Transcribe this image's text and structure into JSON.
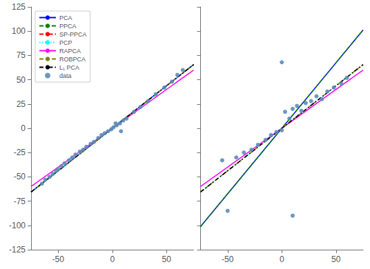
{
  "chart_data": [
    {
      "type": "line",
      "xlim": [
        -75,
        75
      ],
      "xticks": [
        -50,
        0,
        50
      ],
      "ylim": [
        -125,
        125
      ],
      "yticks": [
        -125,
        -100,
        -75,
        -50,
        -25,
        0,
        25,
        50,
        75,
        100,
        125
      ],
      "grid": false,
      "legend": "upper left",
      "series": [
        {
          "name": "PCA",
          "type": "line",
          "color": "blue",
          "line_style": "solid",
          "x": [
            -75,
            75
          ],
          "values": [
            -65.625,
            65.625
          ]
        },
        {
          "name": "PPCA",
          "type": "line",
          "color": "green",
          "line_style": "dashed",
          "x": [
            -75,
            75
          ],
          "values": [
            -65.625,
            65.625
          ]
        },
        {
          "name": "SP-PPCA",
          "type": "line",
          "color": "red",
          "line_style": "dashdot",
          "x": [
            -75,
            75
          ],
          "values": [
            -65.625,
            65.625
          ]
        },
        {
          "name": "PCP",
          "type": "line",
          "color": "cyan",
          "line_style": "dotted",
          "x": [
            -75,
            75
          ],
          "values": [
            -65.625,
            65.625
          ]
        },
        {
          "name": "RAPCA",
          "type": "line",
          "color": "magenta",
          "line_style": "solid",
          "x": [
            -75,
            75
          ],
          "values": [
            -60,
            60
          ]
        },
        {
          "name": "ROBPCA",
          "type": "line",
          "color": "#808000",
          "line_style": "dashed",
          "x": [
            -75,
            75
          ],
          "values": [
            -65.625,
            65.625
          ]
        },
        {
          "name": "L₁ PCA",
          "type": "line",
          "color": "black",
          "line_style": "dashdot",
          "x": [
            -75,
            75
          ],
          "values": [
            -65.625,
            65.625
          ]
        },
        {
          "name": "data",
          "type": "scatter",
          "color": "#5b8db8",
          "marker": "circle",
          "x": [
            -65,
            -62,
            -58,
            -55,
            -52,
            -50,
            -47,
            -44,
            -40,
            -37,
            -34,
            -30,
            -27,
            -24,
            -20,
            -17,
            -13,
            -10,
            -7,
            -4,
            -1,
            1,
            4,
            7,
            10,
            13,
            3,
            8,
            20,
            26,
            33,
            40,
            48,
            55,
            60,
            65
          ],
          "values": [
            -57,
            -53,
            -50,
            -47,
            -44,
            -42,
            -39,
            -36,
            -33,
            -30,
            -27,
            -24,
            -22,
            -19,
            -16,
            -14,
            -10,
            -7,
            -5,
            -3,
            -1,
            1,
            3,
            5,
            8,
            10,
            5,
            -3,
            17,
            22,
            28,
            35,
            42,
            48,
            55,
            60
          ]
        }
      ]
    },
    {
      "type": "line",
      "xlim": [
        -75,
        75
      ],
      "xticks": [
        -50,
        0,
        50
      ],
      "ylim": [
        -125,
        125
      ],
      "yticks": [
        -125,
        -100,
        -75,
        -50,
        -25,
        0,
        25,
        50,
        75,
        100,
        125
      ],
      "grid": false,
      "tick_labels": "x",
      "series": [
        {
          "name": "PCA",
          "type": "line",
          "color": "blue",
          "line_style": "solid",
          "x": [
            -75,
            75
          ],
          "values": [
            -101.25,
            101.25
          ]
        },
        {
          "name": "PPCA",
          "type": "line",
          "color": "green",
          "line_style": "dashed",
          "x": [
            -75,
            75
          ],
          "values": [
            -101.25,
            101.25
          ]
        },
        {
          "name": "SP-PPCA",
          "type": "line",
          "color": "red",
          "line_style": "dashdot",
          "x": [
            -75,
            75
          ],
          "values": [
            -65.625,
            65.625
          ]
        },
        {
          "name": "PCP",
          "type": "line",
          "color": "cyan",
          "line_style": "dotted",
          "x": [
            -75,
            75
          ],
          "values": [
            -65.625,
            65.625
          ]
        },
        {
          "name": "RAPCA",
          "type": "line",
          "color": "magenta",
          "line_style": "solid",
          "x": [
            -75,
            75
          ],
          "values": [
            -60,
            60
          ]
        },
        {
          "name": "ROBPCA",
          "type": "line",
          "color": "#808000",
          "line_style": "dashed",
          "x": [
            -75,
            75
          ],
          "values": [
            -65.625,
            65.625
          ]
        },
        {
          "name": "L₁ PCA",
          "type": "line",
          "color": "black",
          "line_style": "dashdot",
          "x": [
            -75,
            75
          ],
          "values": [
            -65.625,
            65.625
          ]
        },
        {
          "name": "data",
          "type": "scatter",
          "color": "#5b8db8",
          "marker": "circle",
          "x": [
            -55,
            -42,
            -35,
            -28,
            -22,
            -15,
            -10,
            -5,
            0,
            3,
            7,
            10,
            14,
            18,
            22,
            27,
            32,
            37,
            42,
            48,
            55,
            60,
            -50,
            0,
            10
          ],
          "values": [
            -33,
            -30,
            -25,
            -22,
            -17,
            -12,
            -7,
            -4,
            -2,
            17,
            10,
            20,
            23,
            18,
            26,
            28,
            33,
            30,
            38,
            42,
            46,
            52,
            -85,
            68,
            -90
          ]
        }
      ]
    }
  ]
}
